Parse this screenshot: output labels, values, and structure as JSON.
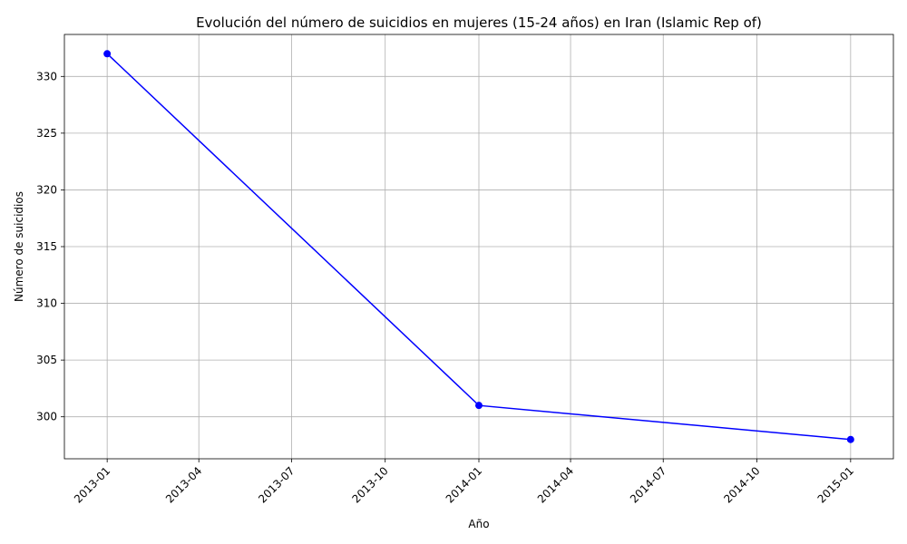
{
  "chart_data": {
    "type": "line",
    "title": "Evolución del número de suicidios en mujeres (15-24 años) en Iran (Islamic Rep of)",
    "xlabel": "Año",
    "ylabel": "Número de suicidios",
    "x_ticks": [
      "2013-01",
      "2013-04",
      "2013-07",
      "2013-10",
      "2014-01",
      "2014-04",
      "2014-07",
      "2014-10",
      "2015-01"
    ],
    "y_ticks": [
      300,
      305,
      310,
      315,
      320,
      325,
      330
    ],
    "xlim": [
      "2012-11-20",
      "2015-02-12"
    ],
    "ylim": [
      296.3,
      333.7
    ],
    "grid": true,
    "series": [
      {
        "color": "#0000ff",
        "marker": "circle",
        "points": [
          {
            "x": "2013-01-01",
            "y": 332
          },
          {
            "x": "2014-01-01",
            "y": 301
          },
          {
            "x": "2015-01-01",
            "y": 298
          }
        ]
      }
    ]
  }
}
